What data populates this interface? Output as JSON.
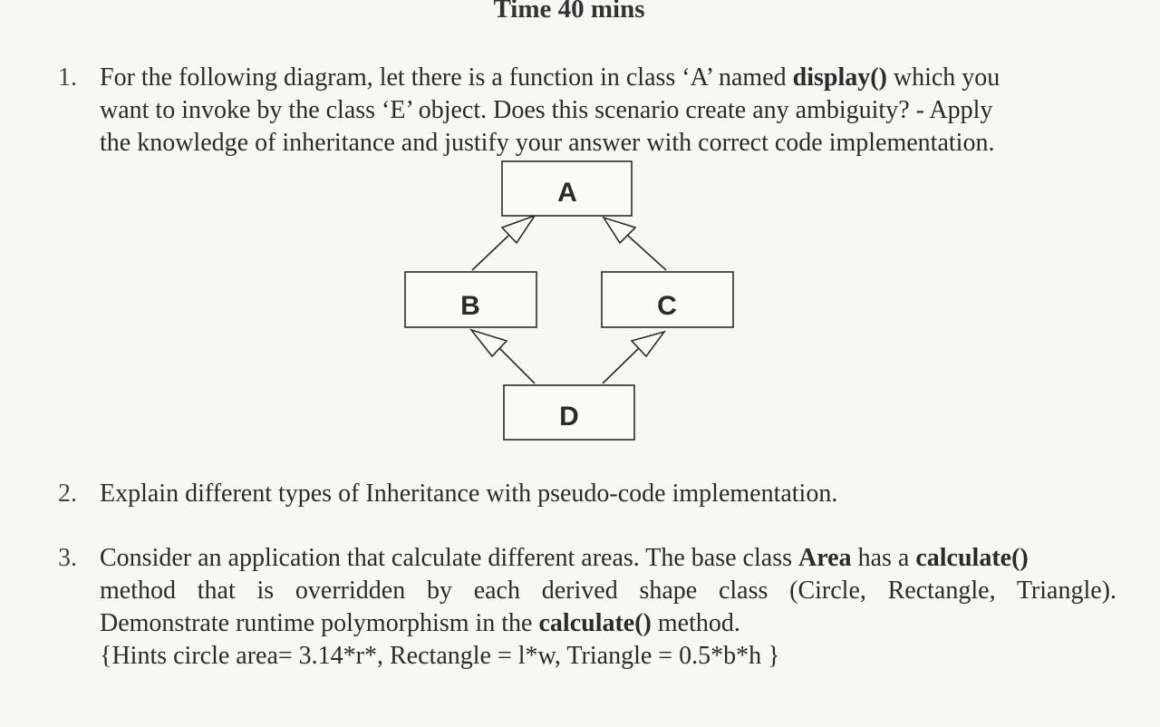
{
  "header": {
    "title": "Time 40 mins"
  },
  "questions": [
    {
      "number": "1.",
      "line1_a": "For the following diagram, let there is a function in class ‘A’ named ",
      "line1_b": "display()",
      "line1_c": " which you",
      "line2": "want to invoke by the class ‘E’ object. Does this scenario create any ambiguity? - Apply",
      "line3": "the knowledge of inheritance and justify your answer with correct code implementation."
    },
    {
      "number": "2.",
      "text": "Explain different types of Inheritance with pseudo-code implementation."
    },
    {
      "number": "3.",
      "line1_a": "Consider an application that calculate different areas. The base class ",
      "line1_b": "Area",
      "line1_c": " has a ",
      "line1_d": "calculate()",
      "line2": "method that is overridden by each derived shape class (Circle, Rectangle, Triangle).",
      "line3_a": "Demonstrate runtime polymorphism in the ",
      "line3_b": "calculate()",
      "line3_c": " method.",
      "line4": "{Hints circle area= 3.14*r*, Rectangle = l*w, Triangle = 0.5*b*h }"
    }
  ],
  "diagram": {
    "nodes": [
      {
        "id": "A",
        "label": "A"
      },
      {
        "id": "B",
        "label": "B"
      },
      {
        "id": "C",
        "label": "C"
      },
      {
        "id": "D",
        "label": "D"
      }
    ],
    "edges": [
      {
        "from": "B",
        "to": "A",
        "arrow": "hollow-triangle"
      },
      {
        "from": "C",
        "to": "A",
        "arrow": "hollow-triangle"
      },
      {
        "from": "D",
        "to": "B",
        "arrow": "hollow-triangle"
      },
      {
        "from": "D",
        "to": "C",
        "arrow": "hollow-triangle"
      }
    ]
  }
}
